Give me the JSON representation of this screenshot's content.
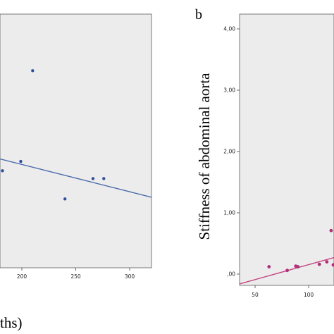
{
  "chart_data": [
    {
      "type": "scatter",
      "panel_label": "",
      "title": "",
      "xlabel": "ths)",
      "ylabel": "",
      "xlim": [
        160,
        315
      ],
      "x_ticks": [
        "200",
        "250",
        "300"
      ],
      "x_tick_values": [
        200,
        250,
        300
      ],
      "grid": false,
      "background": "#ececec",
      "point_color": "#2e4f9c",
      "line_color": "#4a6aab",
      "points": [
        {
          "x": 182,
          "y": 0.62
        },
        {
          "x": 199,
          "y": 0.68
        },
        {
          "x": 210,
          "y": 1.26
        },
        {
          "x": 240,
          "y": 0.44
        },
        {
          "x": 266,
          "y": 0.57
        },
        {
          "x": 276,
          "y": 0.57
        }
      ],
      "fit_line": [
        {
          "x": 160,
          "y": 0.73
        },
        {
          "x": 315,
          "y": 0.46
        }
      ]
    },
    {
      "type": "scatter",
      "panel_label": "b",
      "title": "",
      "xlabel": "",
      "ylabel": "Stiffness of abdominal aorta",
      "xlim": [
        35,
        135
      ],
      "ylim": [
        -0.2,
        4.2
      ],
      "x_ticks": [
        "50",
        "100"
      ],
      "x_tick_values": [
        50,
        100
      ],
      "y_ticks": [
        ",00",
        "1,00",
        "2,00",
        "3,00",
        "4,00"
      ],
      "y_tick_values": [
        0,
        1,
        2,
        3,
        4
      ],
      "grid": false,
      "background": "#ececec",
      "point_color": "#b0307a",
      "line_color": "#c4447f",
      "points": [
        {
          "x": 63,
          "y": 0.12
        },
        {
          "x": 80,
          "y": 0.06
        },
        {
          "x": 88,
          "y": 0.13
        },
        {
          "x": 90,
          "y": 0.12
        },
        {
          "x": 110,
          "y": 0.16
        },
        {
          "x": 117,
          "y": 0.2
        },
        {
          "x": 121,
          "y": 0.71
        },
        {
          "x": 123,
          "y": 0.15
        }
      ],
      "fit_line": [
        {
          "x": 35,
          "y": -0.16
        },
        {
          "x": 135,
          "y": 0.27
        }
      ]
    }
  ]
}
